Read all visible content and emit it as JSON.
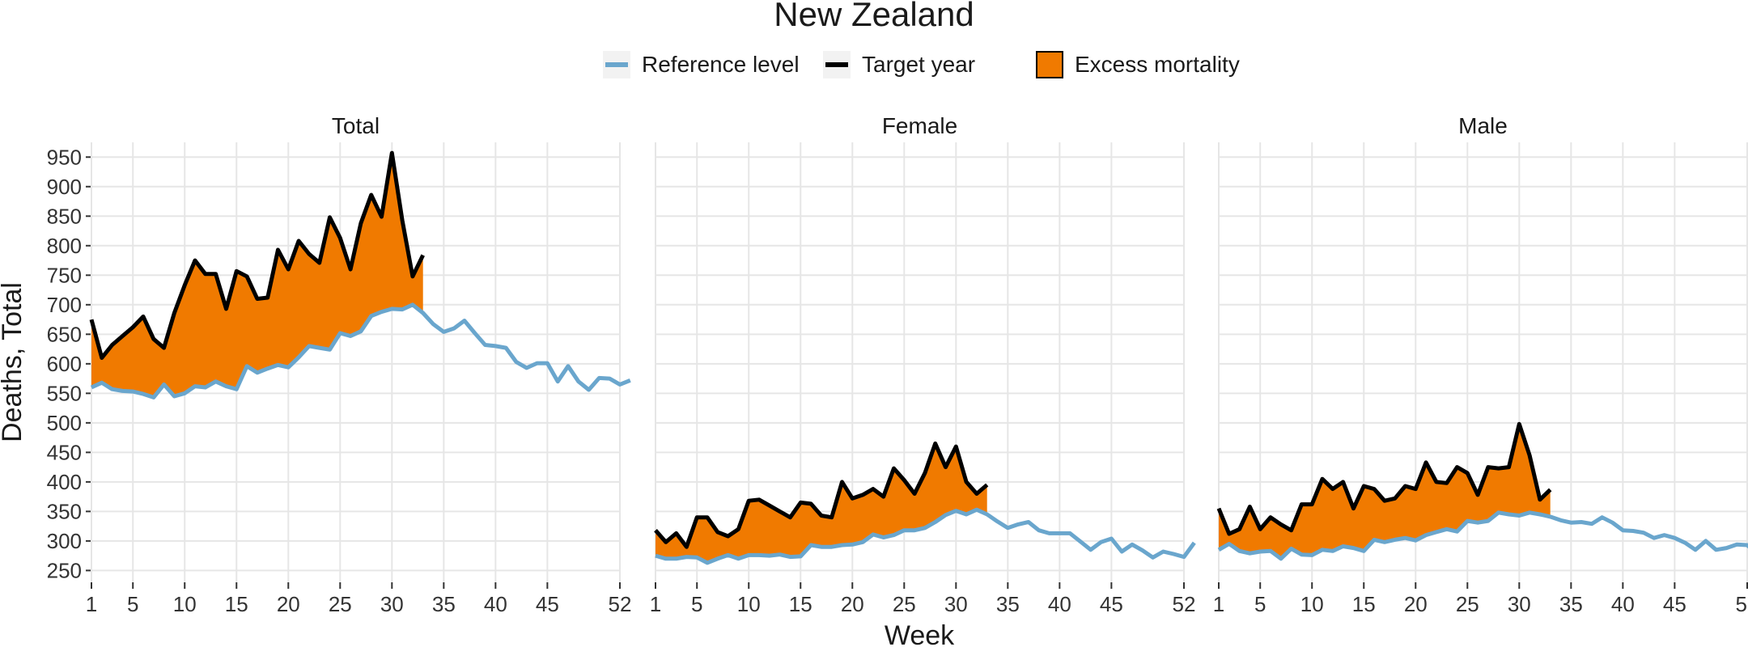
{
  "chart_data": {
    "type": "area",
    "title": "New Zealand",
    "xlabel": "Week",
    "ylabel": "Deaths, Total",
    "ylim": [
      230,
      975
    ],
    "y_ticks": [
      250,
      300,
      350,
      400,
      450,
      500,
      550,
      600,
      650,
      700,
      750,
      800,
      850,
      900,
      950
    ],
    "x_ticks": [
      1,
      5,
      10,
      15,
      20,
      25,
      30,
      35,
      40,
      45,
      52
    ],
    "xlim": [
      1,
      52
    ],
    "grid": true,
    "legend_position": "top",
    "legend": [
      {
        "label": "Reference level",
        "kind": "line",
        "color": "#6aa6cd"
      },
      {
        "label": "Target year",
        "kind": "line",
        "color": "#000000"
      },
      {
        "label": "Excess mortality",
        "kind": "fill",
        "color": "#f07a00"
      }
    ],
    "colors": {
      "reference": "#6aa6cd",
      "target": "#000000",
      "excess": "#f07a00",
      "grid": "#e6e6e6"
    },
    "panels": [
      {
        "name": "Total",
        "reference": [
          560,
          568,
          557,
          554,
          553,
          549,
          543,
          565,
          545,
          550,
          562,
          560,
          570,
          562,
          557,
          596,
          585,
          592,
          598,
          594,
          611,
          630,
          627,
          624,
          652,
          647,
          655,
          681,
          688,
          693,
          692,
          700,
          686,
          667,
          654,
          660,
          673,
          652,
          632,
          630,
          627,
          603,
          593,
          601,
          601,
          570,
          596,
          570,
          556,
          576,
          575,
          565,
          572
        ],
        "target": [
          675,
          610,
          632,
          647,
          662,
          680,
          642,
          627,
          686,
          733,
          775,
          752,
          752,
          693,
          757,
          748,
          710,
          712,
          793,
          760,
          808,
          786,
          771,
          848,
          813,
          760,
          838,
          886,
          849,
          957,
          843,
          748,
          784
        ]
      },
      {
        "name": "Female",
        "reference": [
          275,
          270,
          270,
          273,
          272,
          263,
          270,
          276,
          270,
          276,
          276,
          275,
          277,
          273,
          274,
          293,
          290,
          290,
          293,
          294,
          298,
          311,
          306,
          310,
          318,
          318,
          322,
          332,
          344,
          351,
          345,
          353,
          345,
          333,
          322,
          328,
          332,
          318,
          313,
          313,
          313,
          299,
          285,
          298,
          304,
          282,
          294,
          284,
          272,
          282,
          278,
          273,
          297
        ],
        "target": [
          318,
          298,
          313,
          290,
          340,
          340,
          315,
          308,
          320,
          368,
          370,
          360,
          350,
          340,
          365,
          363,
          343,
          340,
          400,
          372,
          378,
          388,
          375,
          423,
          403,
          380,
          415,
          465,
          425,
          460,
          400,
          380,
          395
        ]
      },
      {
        "name": "Male",
        "reference": [
          285,
          295,
          283,
          279,
          282,
          283,
          270,
          287,
          277,
          276,
          285,
          283,
          291,
          288,
          283,
          302,
          298,
          302,
          305,
          301,
          310,
          315,
          320,
          316,
          334,
          331,
          334,
          348,
          345,
          343,
          348,
          345,
          341,
          335,
          331,
          332,
          329,
          340,
          331,
          318,
          317,
          314,
          305,
          310,
          305,
          297,
          285,
          300,
          285,
          288,
          294,
          293,
          277
        ],
        "target": [
          355,
          312,
          320,
          358,
          320,
          340,
          328,
          318,
          362,
          362,
          405,
          388,
          400,
          355,
          393,
          388,
          368,
          372,
          393,
          388,
          433,
          400,
          398,
          425,
          415,
          378,
          425,
          423,
          425,
          498,
          445,
          370,
          387
        ]
      }
    ]
  }
}
